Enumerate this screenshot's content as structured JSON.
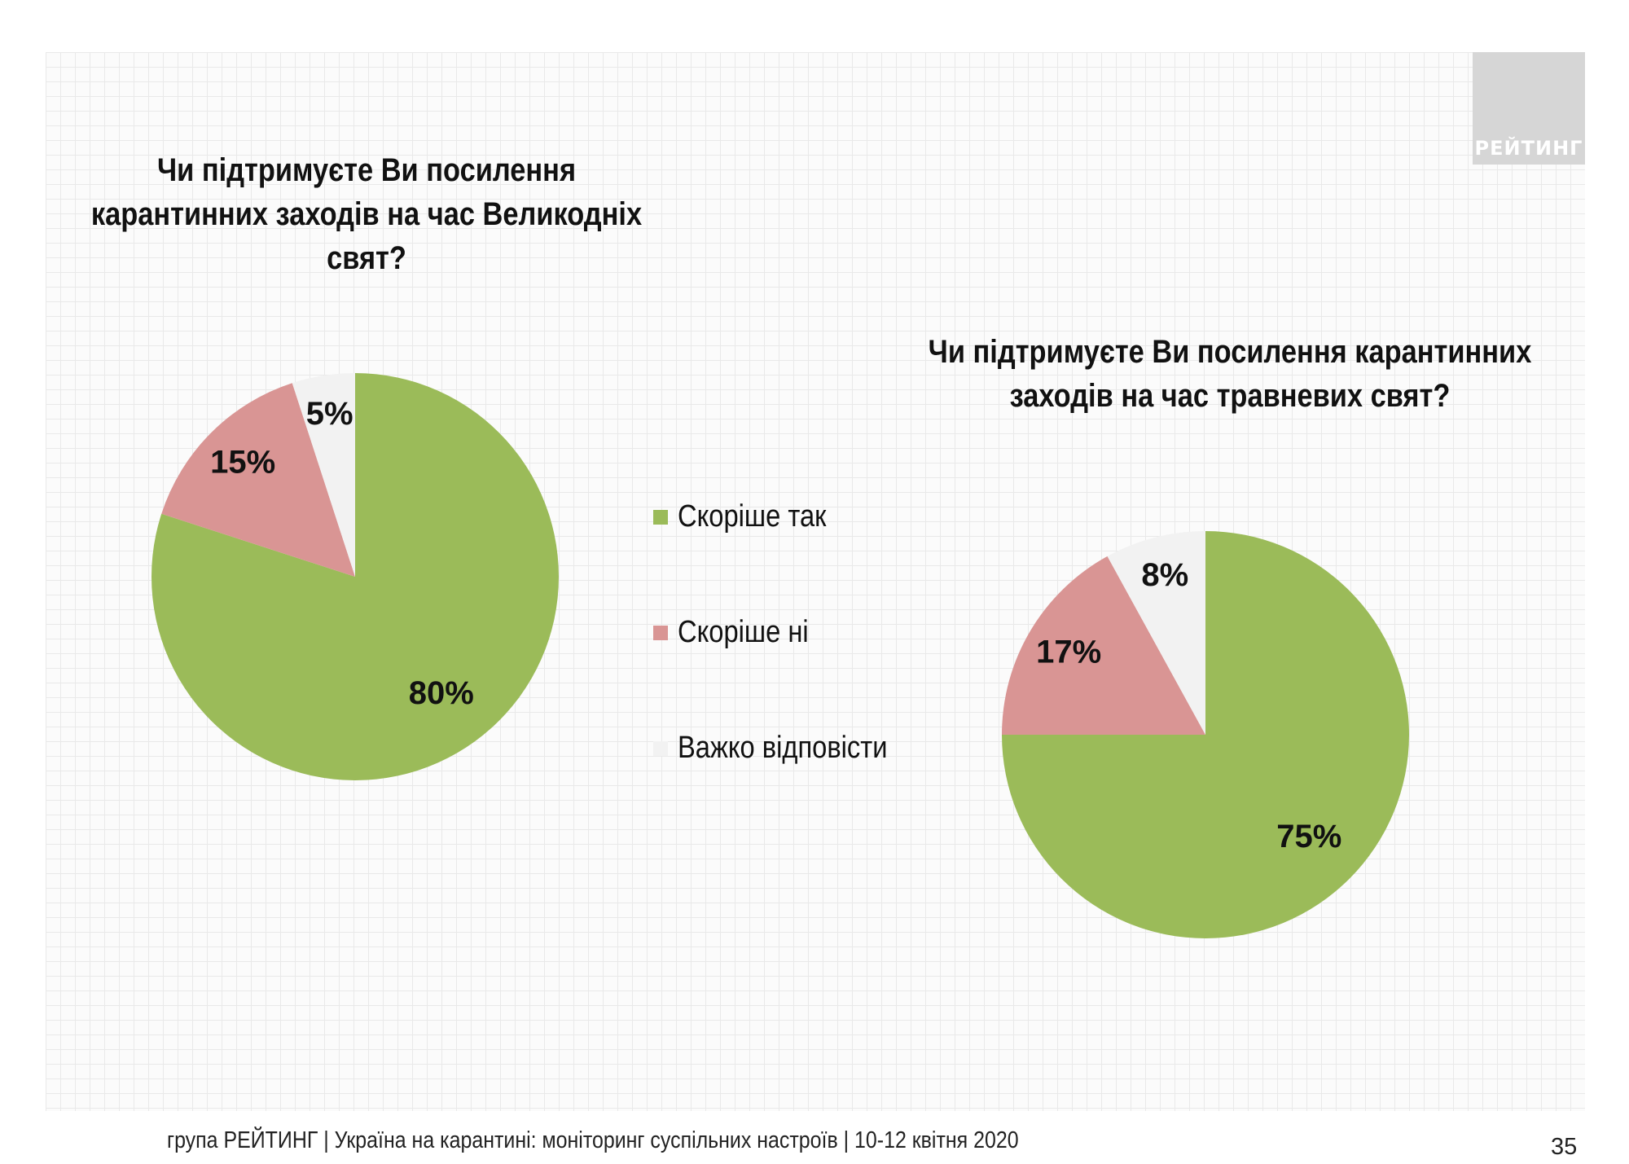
{
  "brand": {
    "logo_text": "РЕЙТИНГ",
    "logo_color": "#d6d6d6"
  },
  "footer": {
    "text": "група РЕЙТИНГ | Україна на карантині: моніторинг суспільних настроїв  | 10-12 квітня  2020",
    "page_number": "35"
  },
  "legend": {
    "items": [
      {
        "label": "Скоріше  так",
        "color": "#9bbb59"
      },
      {
        "label": "Скоріше  ні",
        "color": "#d99594"
      },
      {
        "label": "Важко відповісти",
        "color": "#f2f2f2"
      }
    ]
  },
  "chart_data": [
    {
      "type": "pie",
      "title": "Чи підтримуєте Ви посилення карантинних заходів на час Великодніх свят?",
      "title_lines": [
        "Чи підтримуєте Ви посилення",
        "карантинних заходів на час Великодніх",
        "свят?"
      ],
      "categories": [
        "Скоріше  так",
        "Скоріше  ні",
        "Важко відповісти"
      ],
      "values": [
        80,
        15,
        5
      ],
      "data_labels": [
        "80%",
        "15%",
        "5%"
      ],
      "colors": [
        "#9bbb59",
        "#d99594",
        "#f2f2f2"
      ],
      "legend_position": "right"
    },
    {
      "type": "pie",
      "title": "Чи підтримуєте Ви посилення карантинних заходів на час травневих свят?",
      "title_lines": [
        "Чи підтримуєте Ви посилення карантинних",
        "заходів на час травневих свят?"
      ],
      "categories": [
        "Скоріше  так",
        "Скоріше  ні",
        "Важко відповісти"
      ],
      "values": [
        75,
        17,
        8
      ],
      "data_labels": [
        "75%",
        "17%",
        "8%"
      ],
      "colors": [
        "#9bbb59",
        "#d99594",
        "#f2f2f2"
      ],
      "legend_position": "left"
    }
  ]
}
